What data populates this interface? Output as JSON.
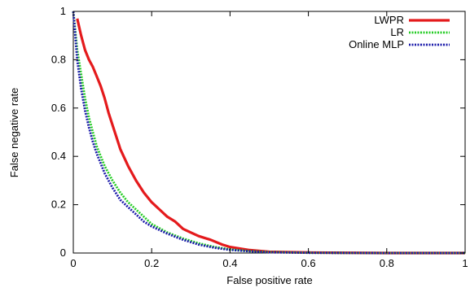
{
  "chart_data": {
    "type": "line",
    "title": "",
    "xlabel": "False positive rate",
    "ylabel": "False negative rate",
    "xlim": [
      0,
      1
    ],
    "ylim": [
      0,
      1
    ],
    "x_ticks": [
      0,
      0.2,
      0.4,
      0.6,
      0.8,
      1
    ],
    "x_tick_labels": [
      "0",
      "0.2",
      "0.4",
      "0.6",
      "0.8",
      "1"
    ],
    "y_ticks": [
      0,
      0.2,
      0.4,
      0.6,
      0.8,
      1
    ],
    "y_tick_labels": [
      "0",
      "0.2",
      "0.4",
      "0.6",
      "0.8",
      "1"
    ],
    "grid": false,
    "legend_position": "top-right",
    "series": [
      {
        "name": "LWPR",
        "color": "#e41a1c",
        "dash": "solid",
        "x": [
          0.01,
          0.02,
          0.03,
          0.04,
          0.05,
          0.06,
          0.07,
          0.08,
          0.09,
          0.1,
          0.11,
          0.12,
          0.14,
          0.16,
          0.18,
          0.2,
          0.22,
          0.24,
          0.26,
          0.28,
          0.3,
          0.32,
          0.35,
          0.38,
          0.4,
          0.45,
          0.5,
          0.6,
          0.8,
          1.0
        ],
        "y": [
          0.97,
          0.9,
          0.84,
          0.8,
          0.77,
          0.73,
          0.69,
          0.64,
          0.58,
          0.53,
          0.48,
          0.43,
          0.36,
          0.3,
          0.25,
          0.21,
          0.18,
          0.15,
          0.13,
          0.1,
          0.085,
          0.07,
          0.055,
          0.035,
          0.025,
          0.012,
          0.005,
          0.002,
          0.0,
          0.0
        ]
      },
      {
        "name": "LR",
        "color": "#22cc22",
        "dash": "dotted",
        "x": [
          0.0,
          0.005,
          0.01,
          0.02,
          0.03,
          0.04,
          0.05,
          0.06,
          0.07,
          0.08,
          0.09,
          0.1,
          0.12,
          0.14,
          0.16,
          0.18,
          0.2,
          0.24,
          0.28,
          0.32,
          0.36,
          0.4,
          0.45,
          0.5,
          0.6,
          0.8,
          1.0
        ],
        "y": [
          1.0,
          0.92,
          0.84,
          0.74,
          0.64,
          0.56,
          0.5,
          0.44,
          0.4,
          0.36,
          0.33,
          0.3,
          0.25,
          0.21,
          0.18,
          0.15,
          0.12,
          0.085,
          0.06,
          0.04,
          0.025,
          0.015,
          0.008,
          0.004,
          0.001,
          0.0,
          0.0
        ]
      },
      {
        "name": "Online MLP",
        "color": "#1a1aaa",
        "dash": "dotted",
        "x": [
          0.0,
          0.005,
          0.01,
          0.02,
          0.03,
          0.04,
          0.05,
          0.06,
          0.07,
          0.08,
          0.09,
          0.1,
          0.12,
          0.14,
          0.16,
          0.18,
          0.2,
          0.24,
          0.28,
          0.32,
          0.36,
          0.4,
          0.45,
          0.5,
          0.6,
          0.8,
          1.0
        ],
        "y": [
          1.0,
          0.9,
          0.8,
          0.68,
          0.59,
          0.52,
          0.46,
          0.41,
          0.37,
          0.33,
          0.3,
          0.27,
          0.22,
          0.19,
          0.16,
          0.13,
          0.11,
          0.08,
          0.055,
          0.035,
          0.022,
          0.013,
          0.007,
          0.003,
          0.001,
          0.0,
          0.0
        ]
      }
    ]
  }
}
